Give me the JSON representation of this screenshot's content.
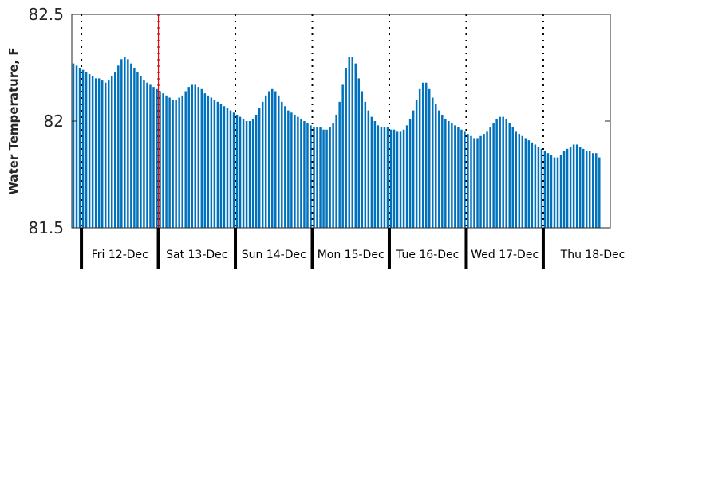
{
  "chart_data": {
    "type": "bar",
    "title": "",
    "xlabel": "",
    "ylabel": "Water Temperature, F",
    "ylim": [
      81.5,
      82.5
    ],
    "y_ticks": [
      "81.5",
      "82",
      "82.5"
    ],
    "y_tick_values": [
      81.5,
      82,
      82.5
    ],
    "x_start": "2025-12-11T21:00",
    "x_end": "2025-12-18T19:00",
    "interval_hours": 1,
    "now_marker": "2025-12-13T00:00",
    "days": [
      "Fri 12-Dec",
      "Sat 13-Dec",
      "Sun 14-Dec",
      "Mon 15-Dec",
      "Tue 16-Dec",
      "Wed 17-Dec",
      "Thu 18-Dec"
    ],
    "day_starts": [
      "2025-12-12T00:00",
      "2025-12-13T00:00",
      "2025-12-14T00:00",
      "2025-12-15T00:00",
      "2025-12-16T00:00",
      "2025-12-17T00:00",
      "2025-12-18T00:00"
    ],
    "bar_color": "#0072bd",
    "now_color": "#ff0000",
    "grid": false,
    "series": [
      {
        "values": [
          82.27,
          82.26,
          82.25,
          82.24,
          82.23,
          82.22,
          82.21,
          82.2,
          82.2,
          82.19,
          82.18,
          82.19,
          82.21,
          82.23,
          82.26,
          82.29,
          82.3,
          82.29,
          82.27,
          82.25,
          82.23,
          82.21,
          82.19,
          82.18,
          82.17,
          82.16,
          82.15,
          82.14,
          82.13,
          82.12,
          82.11,
          82.1,
          82.1,
          82.11,
          82.12,
          82.14,
          82.16,
          82.17,
          82.17,
          82.16,
          82.15,
          82.13,
          82.12,
          82.11,
          82.1,
          82.09,
          82.08,
          82.07,
          82.06,
          82.05,
          82.04,
          82.03,
          82.02,
          82.01,
          82.0,
          82.0,
          82.01,
          82.03,
          82.06,
          82.09,
          82.12,
          82.14,
          82.15,
          82.14,
          82.12,
          82.09,
          82.07,
          82.05,
          82.04,
          82.03,
          82.02,
          82.01,
          82.0,
          81.99,
          81.98,
          81.97,
          81.97,
          81.97,
          81.96,
          81.96,
          81.97,
          81.99,
          82.03,
          82.09,
          82.17,
          82.25,
          82.3,
          82.3,
          82.27,
          82.2,
          82.14,
          82.09,
          82.05,
          82.02,
          82.0,
          81.98,
          81.97,
          81.97,
          81.97,
          81.96,
          81.96,
          81.95,
          81.95,
          81.96,
          81.98,
          82.01,
          82.05,
          82.1,
          82.15,
          82.18,
          82.18,
          82.15,
          82.11,
          82.08,
          82.05,
          82.03,
          82.01,
          82.0,
          81.99,
          81.98,
          81.97,
          81.96,
          81.95,
          81.94,
          81.93,
          81.92,
          81.92,
          81.93,
          81.94,
          81.95,
          81.97,
          81.99,
          82.01,
          82.02,
          82.02,
          82.01,
          81.99,
          81.97,
          81.95,
          81.94,
          81.93,
          81.92,
          81.91,
          81.9,
          81.89,
          81.88,
          81.87,
          81.86,
          81.85,
          81.84,
          81.83,
          81.83,
          81.84,
          81.86,
          81.87,
          81.88,
          81.89,
          81.89,
          81.88,
          81.87,
          81.86,
          81.86,
          81.85,
          81.85,
          81.83
        ]
      }
    ]
  }
}
